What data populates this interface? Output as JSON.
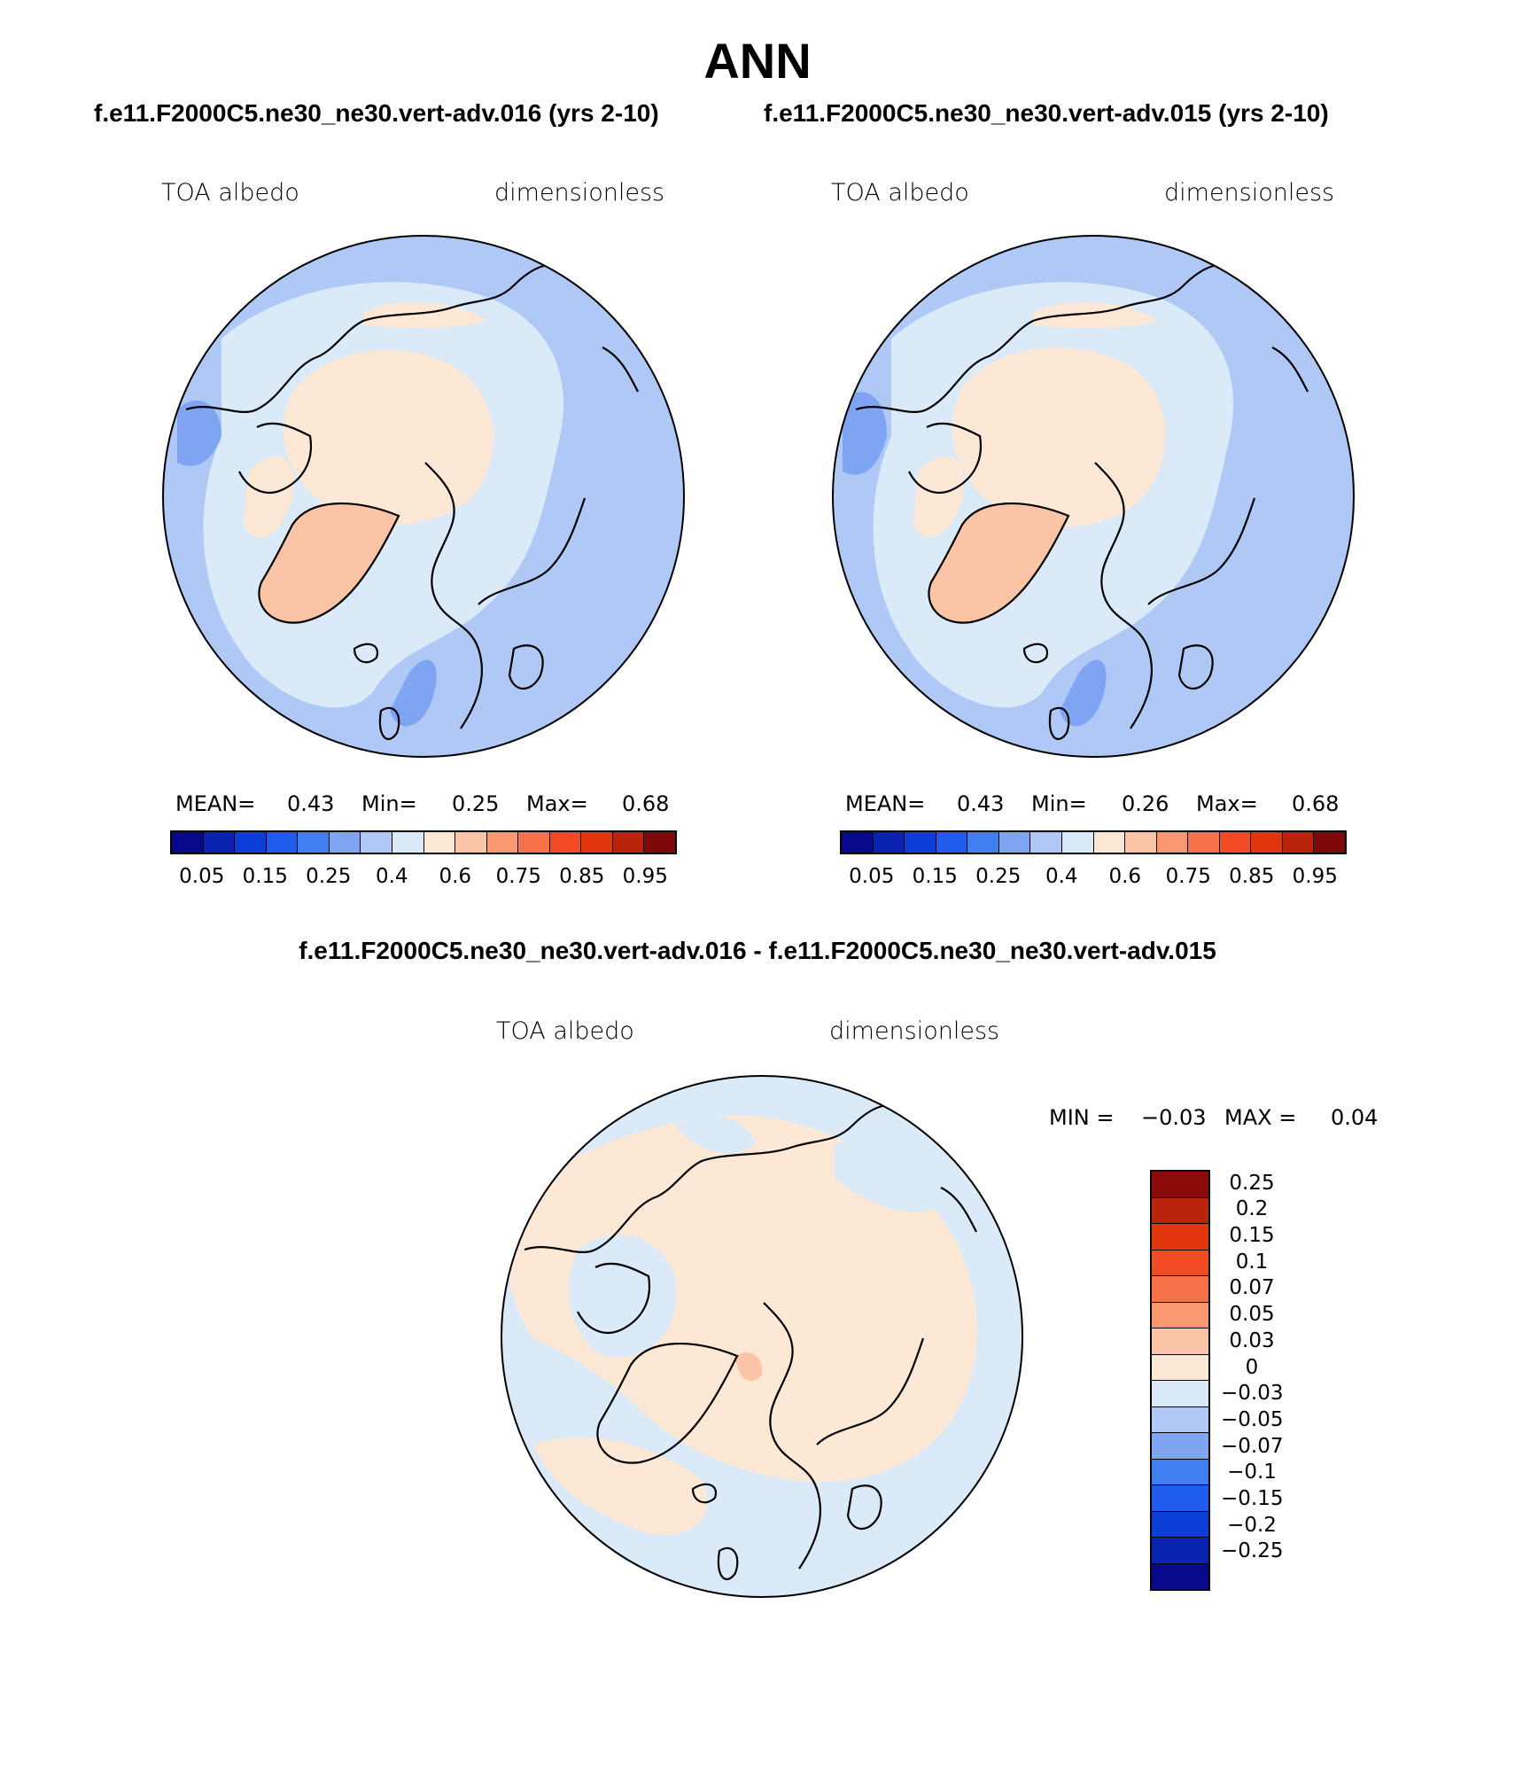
{
  "header": {
    "title": "ANN",
    "left_subtitle": "f.e11.F2000C5.ne30_ne30.vert-adv.016 (yrs 2-10)",
    "right_subtitle": "f.e11.F2000C5.ne30_ne30.vert-adv.015 (yrs 2-10)",
    "diff_subtitle": "f.e11.F2000C5.ne30_ne30.vert-adv.016 - f.e11.F2000C5.ne30_ne30.vert-adv.015"
  },
  "panels": [
    {
      "variable": "TOA albedo",
      "units": "dimensionless",
      "mean_label": "MEAN=",
      "mean": "0.43",
      "min_label": "Min=",
      "min": "0.25",
      "max_label": "Max=",
      "max": "0.68"
    },
    {
      "variable": "TOA albedo",
      "units": "dimensionless",
      "mean_label": "MEAN=",
      "mean": "0.43",
      "min_label": "Min=",
      "min": "0.26",
      "max_label": "Max=",
      "max": "0.68"
    }
  ],
  "diff_panel": {
    "variable": "TOA albedo",
    "units": "dimensionless",
    "min_label": "MIN =",
    "min": "−0.03",
    "max_label": "MAX =",
    "max": "0.04"
  },
  "colorbar": {
    "colors": [
      "#08088c",
      "#0a23b0",
      "#0c3fd8",
      "#1f5bec",
      "#3f7ff0",
      "#7fa5f2",
      "#b0c8f6",
      "#daeaf9",
      "#fde8d6",
      "#fbc4a6",
      "#f99870",
      "#f77248",
      "#f24a22",
      "#e2360c",
      "#b9240a",
      "#7f0808"
    ],
    "ticks": [
      "0.05",
      "0.15",
      "0.25",
      "0.4",
      "0.6",
      "0.75",
      "0.85",
      "0.95"
    ]
  },
  "diff_colorbar": {
    "colors": [
      "#8c0a0a",
      "#b9240a",
      "#e2360c",
      "#f24a22",
      "#f77248",
      "#f99870",
      "#fbc4a6",
      "#fde8d6",
      "#daeaf9",
      "#b0c8f6",
      "#7fa5f2",
      "#3f7ff0",
      "#1f5bec",
      "#0c3fd8",
      "#0a23b0",
      "#08088c"
    ],
    "ticks": [
      "0.25",
      "0.2",
      "0.15",
      "0.1",
      "0.07",
      "0.05",
      "0.03",
      "0",
      "−0.03",
      "−0.05",
      "−0.07",
      "−0.1",
      "−0.15",
      "−0.2",
      "−0.25"
    ]
  },
  "map_colors": {
    "ocean_far": "#b0c8f6",
    "ocean_mid": "#daeaf9",
    "ice": "#fde8d6",
    "greenland": "#fbc4a6",
    "dark_blue": "#7fa5f2",
    "diff_blue": "#daeaf9",
    "diff_orange": "#fde8d6",
    "diff_hot": "#fbc4a6"
  }
}
